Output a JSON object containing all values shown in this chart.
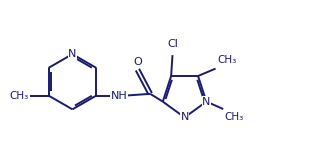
{
  "bg_color": "#ffffff",
  "bond_color": "#1a1a6e",
  "label_color": "#1a1a6e",
  "line_width": 1.4,
  "font_size": 8.0,
  "figsize": [
    3.2,
    1.51
  ],
  "dpi": 100,
  "xlim": [
    0,
    9.5
  ],
  "ylim": [
    0,
    4.47
  ]
}
